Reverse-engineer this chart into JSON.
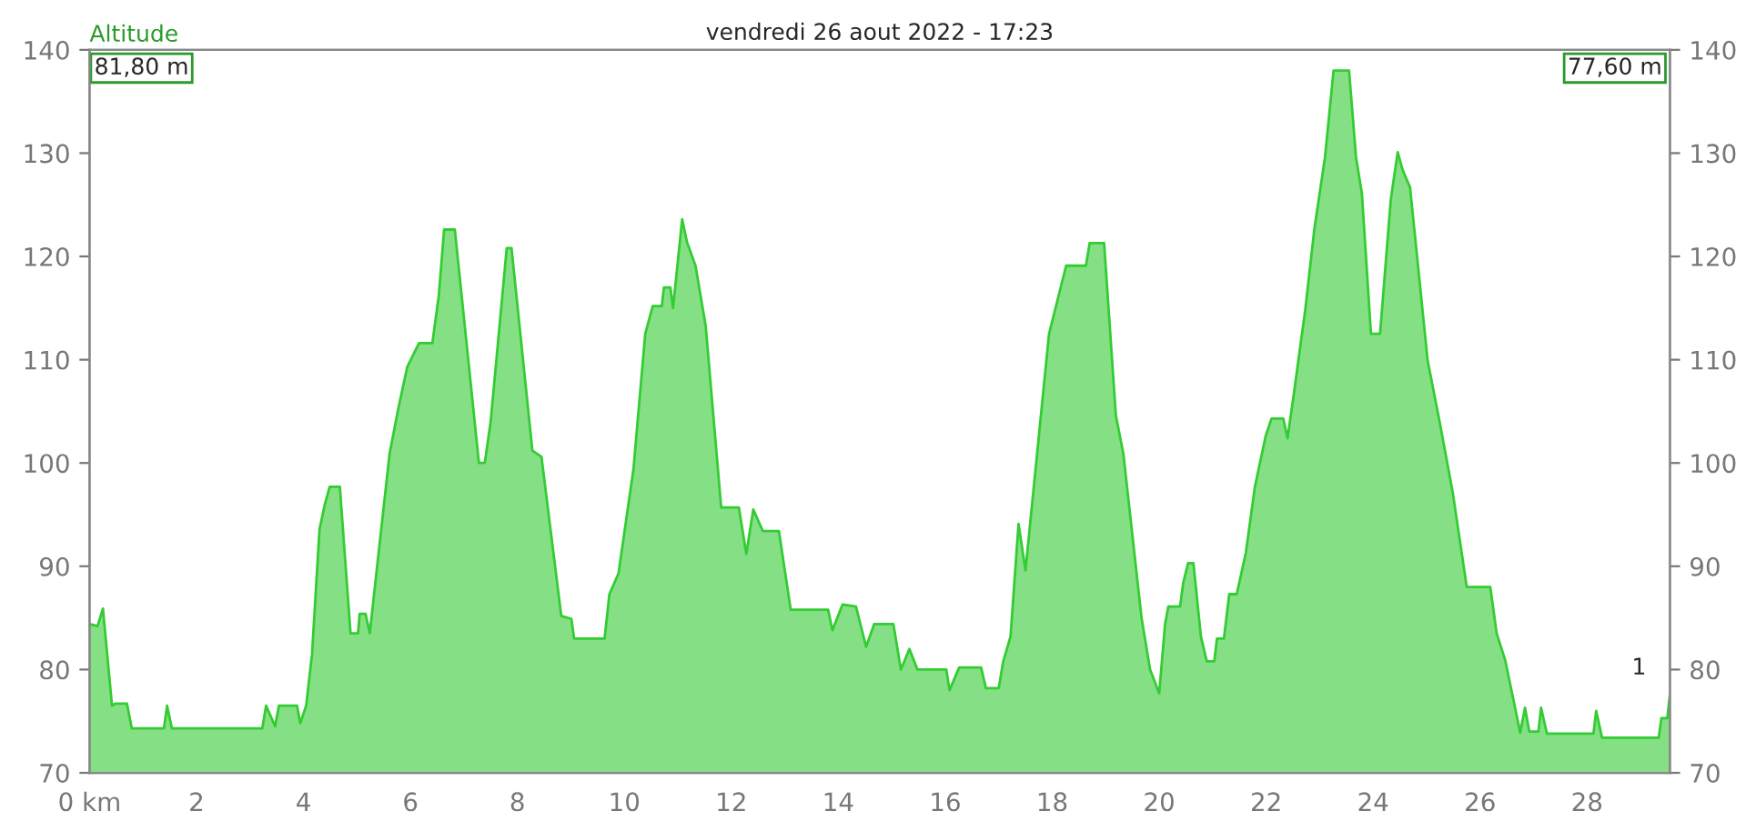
{
  "chart_data": {
    "type": "area",
    "title": "vendredi 26 aout 2022 - 17:23",
    "ylabel": "Altitude",
    "x": [
      0,
      0.15,
      0.25,
      0.42,
      0.48,
      0.7,
      0.79,
      1.39,
      1.45,
      1.54,
      3.23,
      3.3,
      3.47,
      3.54,
      3.88,
      3.94,
      4.05,
      4.16,
      4.3,
      4.4,
      4.49,
      4.68,
      4.88,
      5.02,
      5.05,
      5.16,
      5.24,
      5.33,
      5.61,
      5.77,
      5.94,
      6.16,
      6.41,
      6.53,
      6.63,
      6.83,
      7.28,
      7.39,
      7.5,
      7.8,
      7.89,
      8.28,
      8.45,
      8.82,
      9.01,
      9.06,
      9.63,
      9.72,
      9.89,
      10.17,
      10.39,
      10.53,
      10.7,
      10.74,
      10.86,
      10.91,
      11.08,
      11.17,
      11.33,
      11.52,
      11.81,
      12.14,
      12.28,
      12.41,
      12.59,
      12.89,
      13.11,
      13.81,
      13.89,
      14.08,
      14.33,
      14.52,
      14.67,
      15.03,
      15.17,
      15.33,
      15.48,
      16.02,
      16.08,
      16.26,
      16.67,
      16.76,
      17.0,
      17.08,
      17.22,
      17.37,
      17.5,
      17.7,
      17.94,
      18.26,
      18.63,
      18.7,
      18.97,
      19.19,
      19.33,
      19.67,
      19.83,
      20.0,
      20.11,
      20.17,
      20.39,
      20.45,
      20.54,
      20.64,
      20.78,
      20.89,
      21.03,
      21.08,
      21.21,
      21.31,
      21.45,
      21.62,
      21.79,
      21.99,
      22.1,
      22.32,
      22.4,
      22.51,
      22.73,
      22.9,
      23.1,
      23.26,
      23.55,
      23.68,
      23.79,
      23.96,
      24.13,
      24.33,
      24.46,
      24.55,
      24.69,
      25.02,
      25.25,
      25.49,
      25.75,
      26.19,
      26.31,
      26.47,
      26.75,
      26.84,
      26.92,
      27.09,
      27.14,
      27.25,
      28.12,
      28.17,
      28.28,
      29.34,
      29.39,
      29.5,
      29.55
    ],
    "series": [
      {
        "color": "#33cc33",
        "values": [
          84.4,
          84.2,
          85.9,
          76.5,
          76.7,
          76.7,
          74.3,
          74.3,
          76.5,
          74.3,
          74.3,
          76.5,
          74.5,
          76.5,
          76.5,
          74.8,
          76.5,
          81.5,
          93.6,
          96,
          97.7,
          97.7,
          83.5,
          83.5,
          85.4,
          85.4,
          83.5,
          87.8,
          100.9,
          105.2,
          109.3,
          111.6,
          111.6,
          116.2,
          122.6,
          122.6,
          100,
          100,
          104,
          120.8,
          120.8,
          101.2,
          100.6,
          85.2,
          84.9,
          83,
          83,
          87.3,
          89.3,
          99.4,
          112.5,
          115.2,
          115.2,
          117,
          117,
          115,
          123.6,
          121.4,
          119.1,
          113.3,
          95.7,
          95.7,
          91.2,
          95.5,
          93.4,
          93.4,
          85.8,
          85.8,
          83.8,
          86.3,
          86.1,
          82.2,
          84.4,
          84.4,
          80,
          82,
          80,
          80,
          78,
          80.2,
          80.2,
          78.2,
          78.2,
          80.7,
          83.2,
          94.1,
          89.6,
          100,
          112.5,
          119.1,
          119.1,
          121.3,
          121.3,
          104.6,
          100.9,
          85,
          80,
          77.7,
          84.4,
          86.1,
          86.1,
          88.4,
          90.3,
          90.3,
          83.2,
          80.8,
          80.8,
          83,
          83,
          87.3,
          87.3,
          91.3,
          97.7,
          102.6,
          104.3,
          104.3,
          102.4,
          106.4,
          114.8,
          122.6,
          129.6,
          138,
          138,
          129.6,
          126.1,
          112.5,
          112.5,
          125.5,
          130.1,
          128.4,
          126.7,
          109.9,
          103.8,
          97.1,
          88,
          88,
          83.5,
          80.9,
          73.9,
          76.3,
          74,
          74,
          76.3,
          73.8,
          73.8,
          76,
          73.4,
          73.4,
          75.3,
          75.3,
          77.6
        ]
      }
    ],
    "xlim": [
      0,
      29.55
    ],
    "xticks": [
      {
        "value": 0,
        "label": "0 km"
      },
      2,
      4,
      6,
      8,
      10,
      12,
      14,
      16,
      18,
      20,
      22,
      24,
      26,
      28
    ],
    "ylim": [
      70,
      140
    ],
    "yticks": [
      70,
      80,
      90,
      100,
      110,
      120,
      130,
      140
    ],
    "y2lim": [
      70,
      140
    ],
    "y2ticks": [
      70,
      80,
      90,
      100,
      110,
      120,
      130,
      140
    ],
    "annotations": [
      "81,80 m",
      "77,60 m",
      "1"
    ]
  }
}
